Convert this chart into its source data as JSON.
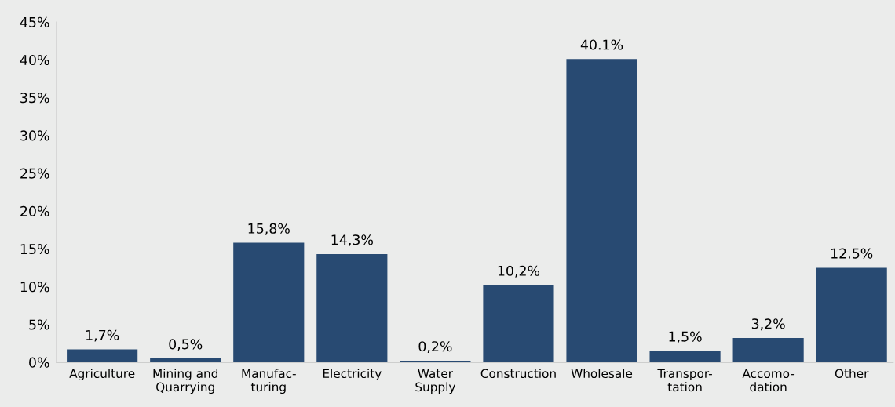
{
  "chart_data": {
    "type": "bar",
    "categories": [
      "Agriculture",
      "Mining and\nQuarrying",
      "Manufac-\nturing",
      "Electricity",
      "Water\nSupply",
      "Construction",
      "Wholesale",
      "Transpor-\ntation",
      "Accomo-\ndation",
      "Other"
    ],
    "values": [
      1.7,
      0.5,
      15.8,
      14.3,
      0.2,
      10.2,
      40.1,
      1.5,
      3.2,
      12.5
    ],
    "value_labels": [
      "1,7%",
      "0,5%",
      "15,8%",
      "14,3%",
      "0,2%",
      "10,2%",
      "40.1%",
      "1,5%",
      "3,2%",
      "12.5%"
    ],
    "color": "#284a72",
    "ylim": [
      0,
      45
    ],
    "yticks": [
      {
        "value": 0,
        "label": "0%"
      },
      {
        "value": 5,
        "label": "5%"
      },
      {
        "value": 10,
        "label": "10%"
      },
      {
        "value": 15,
        "label": "15%"
      },
      {
        "value": 20,
        "label": "20%"
      },
      {
        "value": 25,
        "label": "25%"
      },
      {
        "value": 30,
        "label": "30%"
      },
      {
        "value": 35,
        "label": "35%"
      },
      {
        "value": 40,
        "label": "40%"
      },
      {
        "value": 45,
        "label": "45%"
      }
    ],
    "grid": false
  }
}
